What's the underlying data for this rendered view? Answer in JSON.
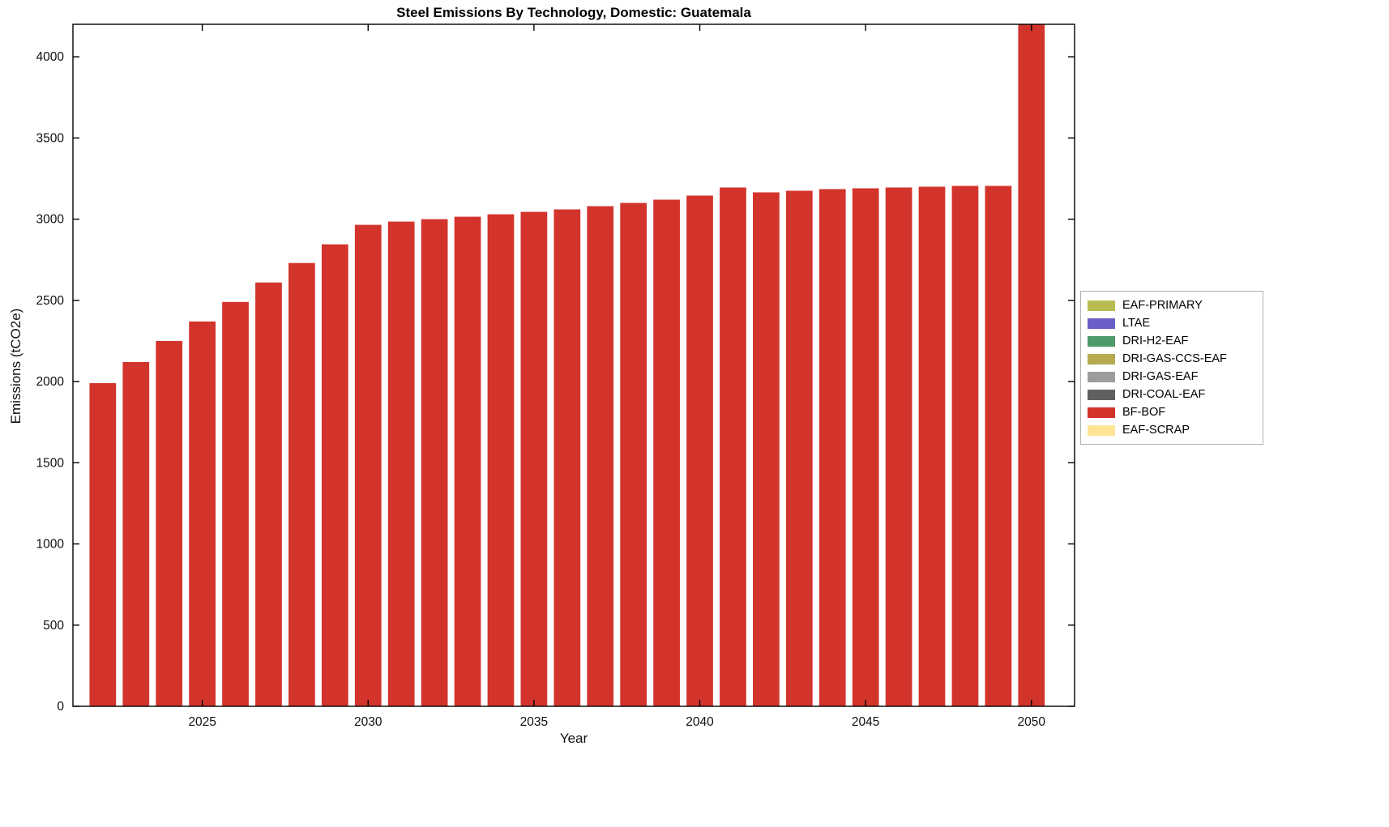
{
  "title": "Steel Emissions By Technology, Domestic: Guatemala",
  "xlabel": "Year",
  "ylabel": "Emissions (tCO2e)",
  "legend": {
    "position": "right-outside",
    "items": [
      {
        "label": "EAF-PRIMARY",
        "color": "#b9bd51"
      },
      {
        "label": "LTAE",
        "color": "#6b5fc8"
      },
      {
        "label": "DRI-H2-EAF",
        "color": "#4e9a6d"
      },
      {
        "label": "DRI-GAS-CCS-EAF",
        "color": "#b5aa50"
      },
      {
        "label": "DRI-GAS-EAF",
        "color": "#9c9c9c"
      },
      {
        "label": "DRI-COAL-EAF",
        "color": "#606060"
      },
      {
        "label": "BF-BOF",
        "color": "#d2342c"
      },
      {
        "label": "EAF-SCRAP",
        "color": "#ffe495"
      }
    ]
  },
  "chart_data": {
    "type": "bar",
    "stacked": true,
    "title": "Steel Emissions By Technology, Domestic: Guatemala",
    "xlabel": "Year",
    "ylabel": "Emissions (tCO2e)",
    "categories": [
      2022,
      2023,
      2024,
      2025,
      2026,
      2027,
      2028,
      2029,
      2030,
      2031,
      2032,
      2033,
      2034,
      2035,
      2036,
      2037,
      2038,
      2039,
      2040,
      2041,
      2042,
      2043,
      2044,
      2045,
      2046,
      2047,
      2048,
      2049,
      2050
    ],
    "series": [
      {
        "name": "BF-BOF",
        "color": "#d2342c",
        "values": [
          1990,
          2120,
          2250,
          2370,
          2490,
          2610,
          2730,
          2845,
          2965,
          2985,
          3000,
          3015,
          3030,
          3045,
          3060,
          3080,
          3100,
          3120,
          3145,
          3195,
          3165,
          3175,
          3185,
          3190,
          3195,
          3200,
          3205,
          3205,
          4300
        ]
      }
    ],
    "xticks": [
      2025,
      2030,
      2035,
      2040,
      2045,
      2050
    ],
    "yticks": [
      0,
      500,
      1000,
      1500,
      2000,
      2500,
      3000,
      3500,
      4000
    ],
    "xlim": [
      2021.1,
      2051.3
    ],
    "ylim": [
      0,
      4200
    ],
    "bar_width_years": 0.8,
    "grid": false,
    "axis_color": "#000000",
    "legend_position": "right-outside"
  }
}
